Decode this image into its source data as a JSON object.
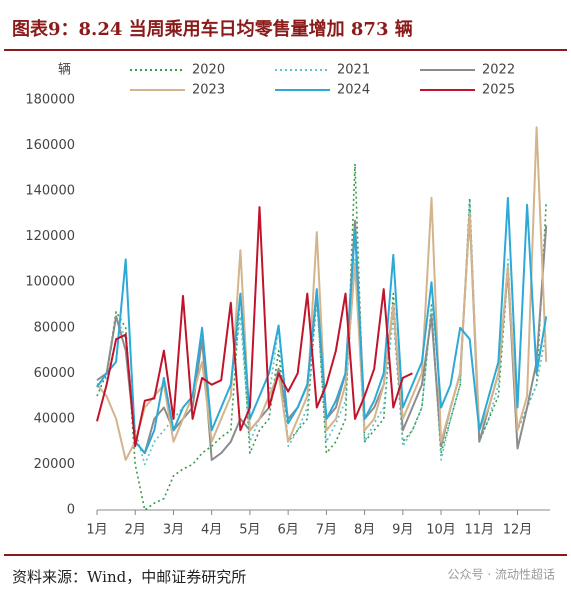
{
  "chart_data": {
    "type": "line",
    "title": "图表9：8.24 当周乘用车日均零售量增加 873 辆",
    "y_label": "辆",
    "source": "资料来源：Wind，中邮证券研究所",
    "watermark": "公众号 · 流动性超话",
    "x": [
      1,
      1.25,
      1.5,
      1.75,
      2,
      2.25,
      2.5,
      2.75,
      3,
      3.25,
      3.5,
      3.75,
      4,
      4.25,
      4.5,
      4.75,
      5,
      5.25,
      5.5,
      5.75,
      6,
      6.25,
      6.5,
      6.75,
      7,
      7.25,
      7.5,
      7.75,
      8,
      8.25,
      8.5,
      8.75,
      9,
      9.25,
      9.5,
      9.75,
      10,
      10.25,
      10.5,
      10.75,
      11,
      11.25,
      11.5,
      11.75,
      12,
      12.25,
      12.5,
      12.75
    ],
    "xlim": [
      1,
      12.85
    ],
    "xticks": [
      {
        "value": 1,
        "label": "1月"
      },
      {
        "value": 2,
        "label": "2月"
      },
      {
        "value": 3,
        "label": "3月"
      },
      {
        "value": 4,
        "label": "4月"
      },
      {
        "value": 5,
        "label": "5月"
      },
      {
        "value": 6,
        "label": "6月"
      },
      {
        "value": 7,
        "label": "7月"
      },
      {
        "value": 8,
        "label": "8月"
      },
      {
        "value": 9,
        "label": "9月"
      },
      {
        "value": 10,
        "label": "10月"
      },
      {
        "value": 11,
        "label": "11月"
      },
      {
        "value": 12,
        "label": "12月"
      }
    ],
    "ylim": [
      0,
      180000
    ],
    "yticks": [
      0,
      20000,
      40000,
      60000,
      80000,
      100000,
      120000,
      140000,
      160000,
      180000
    ],
    "series": [
      {
        "name": "2020",
        "color": "#3a9a4a",
        "dash": "dotted",
        "values": [
          50000,
          60000,
          87000,
          80000,
          20000,
          0,
          3000,
          5000,
          15000,
          18000,
          20000,
          25000,
          28000,
          32000,
          35000,
          95000,
          25000,
          35000,
          40000,
          70000,
          30000,
          35000,
          40000,
          95000,
          25000,
          30000,
          40000,
          152000,
          30000,
          35000,
          40000,
          95000,
          30000,
          35000,
          45000,
          90000,
          25000,
          40000,
          55000,
          137000,
          30000,
          40000,
          50000,
          105000,
          35000,
          45000,
          55000,
          135000
        ]
      },
      {
        "name": "2021",
        "color": "#5cc1c9",
        "dash": "dotted",
        "values": [
          55000,
          58000,
          85000,
          75000,
          35000,
          20000,
          30000,
          35000,
          40000,
          45000,
          50000,
          65000,
          35000,
          45000,
          55000,
          85000,
          30000,
          40000,
          50000,
          80000,
          28000,
          35000,
          45000,
          92000,
          30000,
          38000,
          48000,
          110000,
          30000,
          38000,
          45000,
          85000,
          28000,
          35000,
          45000,
          88000,
          22000,
          40000,
          55000,
          135000,
          30000,
          40000,
          55000,
          110000,
          35000,
          45000,
          55000,
          78000
        ]
      },
      {
        "name": "2022",
        "color": "#8c8c8c",
        "dash": "solid",
        "values": [
          57000,
          60000,
          85000,
          70000,
          30000,
          25000,
          40000,
          45000,
          35000,
          40000,
          45000,
          75000,
          22000,
          25000,
          30000,
          40000,
          35000,
          40000,
          45000,
          62000,
          40000,
          45000,
          55000,
          95000,
          40000,
          45000,
          60000,
          127000,
          40000,
          45000,
          55000,
          90000,
          35000,
          45000,
          55000,
          85000,
          28000,
          45000,
          60000,
          130000,
          30000,
          45000,
          60000,
          105000,
          27000,
          45000,
          65000,
          125000
        ]
      },
      {
        "name": "2023",
        "color": "#d4b48c",
        "dash": "solid",
        "values": [
          55000,
          50000,
          40000,
          22000,
          30000,
          45000,
          50000,
          55000,
          30000,
          40000,
          50000,
          65000,
          30000,
          40000,
          50000,
          114000,
          35000,
          40000,
          50000,
          60000,
          30000,
          40000,
          50000,
          122000,
          35000,
          40000,
          55000,
          108000,
          35000,
          40000,
          55000,
          90000,
          40000,
          50000,
          60000,
          137000,
          30000,
          45000,
          60000,
          130000,
          35000,
          45000,
          60000,
          107000,
          35000,
          50000,
          168000,
          65000
        ]
      },
      {
        "name": "2024",
        "color": "#2ea9d6",
        "dash": "solid",
        "values": [
          54000,
          60000,
          65000,
          110000,
          30000,
          25000,
          35000,
          58000,
          35000,
          45000,
          50000,
          80000,
          35000,
          45000,
          55000,
          95000,
          40000,
          50000,
          60000,
          81000,
          38000,
          45000,
          55000,
          97000,
          40000,
          48000,
          60000,
          123000,
          40000,
          48000,
          60000,
          112000,
          45000,
          55000,
          65000,
          100000,
          45000,
          55000,
          80000,
          75000,
          35000,
          50000,
          65000,
          137000,
          45000,
          134000,
          60000,
          85000
        ]
      },
      {
        "name": "2025",
        "color": "#c0142c",
        "dash": "solid",
        "values": [
          39000,
          55000,
          75000,
          77000,
          28000,
          48000,
          49000,
          70000,
          40000,
          94000,
          40000,
          58000,
          55000,
          57000,
          91000,
          35000,
          45000,
          133000,
          45000,
          60000,
          52000,
          60000,
          95000,
          45000,
          55000,
          70000,
          95000,
          40000,
          50000,
          62000,
          97000,
          45000,
          58000,
          60000,
          null,
          null,
          null,
          null,
          null,
          null,
          null,
          null,
          null,
          null,
          null,
          null,
          null,
          null
        ]
      }
    ]
  }
}
